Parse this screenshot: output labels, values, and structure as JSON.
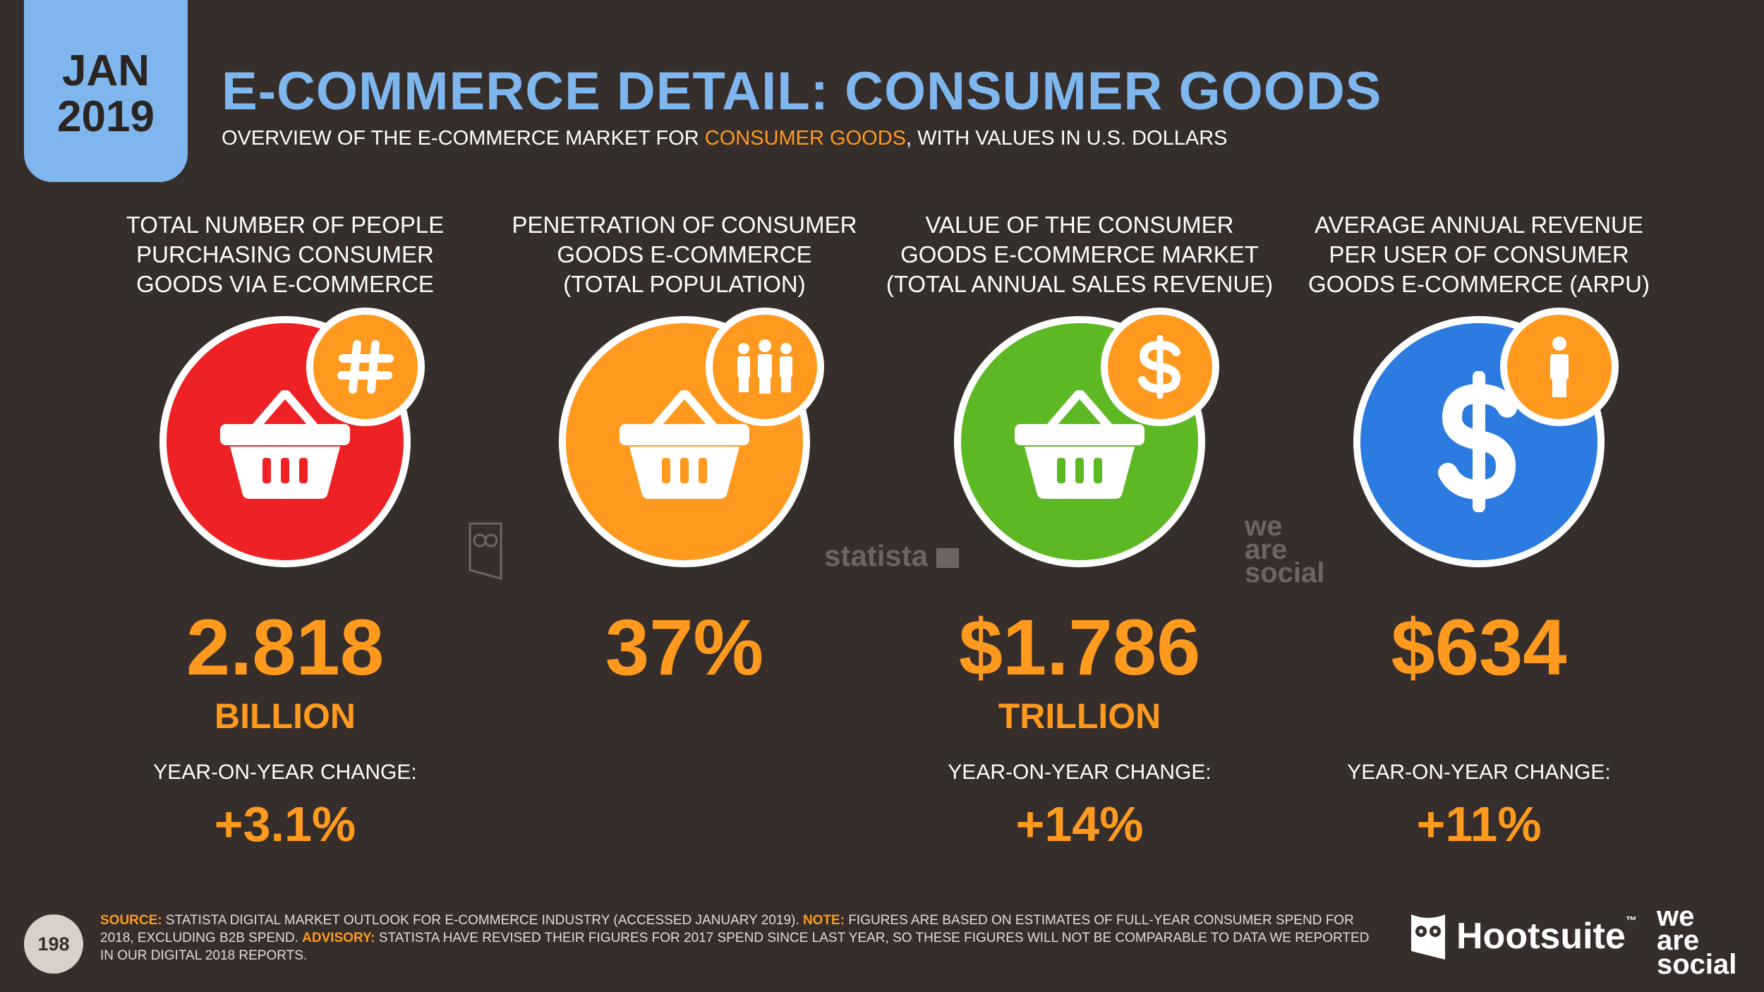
{
  "header": {
    "date_month": "JAN",
    "date_year": "2019",
    "title": "E-COMMERCE DETAIL: CONSUMER GOODS",
    "subtitle_pre": "OVERVIEW OF THE E-COMMERCE MARKET FOR ",
    "subtitle_highlight": "CONSUMER GOODS",
    "subtitle_post": ", WITH VALUES IN U.S. DOLLARS"
  },
  "colors": {
    "background": "#362e2b",
    "accent_blue": "#7fb6ee",
    "accent_orange": "#ff9a1f",
    "circle_red": "#ee2224",
    "circle_orange": "#ff9a1f",
    "circle_green": "#5db923",
    "circle_blue": "#2c7be0"
  },
  "stats": [
    {
      "header": [
        "TOTAL NUMBER OF PEOPLE",
        "PURCHASING CONSUMER",
        "GOODS VIA E-COMMERCE"
      ],
      "icon": "shopping-basket-icon",
      "badge_icon": "hash-icon",
      "value": "2.818",
      "unit": "BILLION",
      "yoy_label": "YEAR-ON-YEAR CHANGE:",
      "yoy_value": "+3.1%"
    },
    {
      "header": [
        "PENETRATION OF CONSUMER",
        "GOODS E-COMMERCE",
        "(TOTAL POPULATION)"
      ],
      "icon": "shopping-basket-icon",
      "badge_icon": "people-group-icon",
      "value": "37%",
      "unit": "",
      "yoy_label": "",
      "yoy_value": ""
    },
    {
      "header": [
        "VALUE OF THE CONSUMER",
        "GOODS E-COMMERCE MARKET",
        "(TOTAL ANNUAL SALES REVENUE)"
      ],
      "icon": "shopping-basket-icon",
      "badge_icon": "dollar-icon",
      "value": "$1.786",
      "unit": "TRILLION",
      "yoy_label": "YEAR-ON-YEAR CHANGE:",
      "yoy_value": "+14%"
    },
    {
      "header": [
        "AVERAGE ANNUAL REVENUE",
        "PER USER OF CONSUMER",
        "GOODS E-COMMERCE (ARPU)"
      ],
      "icon": "dollar-sign-icon",
      "badge_icon": "person-icon",
      "value": "$634",
      "unit": "",
      "yoy_label": "YEAR-ON-YEAR CHANGE:",
      "yoy_value": "+11%"
    }
  ],
  "watermarks": {
    "statista": "statista",
    "we_are_social": [
      "we",
      "are",
      "social"
    ]
  },
  "footer": {
    "page_number": "198",
    "source_label": "SOURCE:",
    "source_text": " STATISTA DIGITAL MARKET OUTLOOK FOR E-COMMERCE INDUSTRY (ACCESSED JANUARY 2019). ",
    "note_label": "NOTE:",
    "note_text": " FIGURES ARE BASED ON ESTIMATES OF FULL-YEAR CONSUMER SPEND FOR 2018, EXCLUDING B2B SPEND. ",
    "advisory_label": "ADVISORY:",
    "advisory_text": " STATISTA HAVE REVISED THEIR FIGURES FOR 2017 SPEND SINCE LAST YEAR, SO THESE FIGURES WILL NOT BE COMPARABLE TO DATA WE REPORTED IN OUR DIGITAL 2018 REPORTS.",
    "hootsuite": "Hootsuite",
    "trademark": "™",
    "we_are_social": [
      "we",
      "are",
      "social"
    ]
  }
}
